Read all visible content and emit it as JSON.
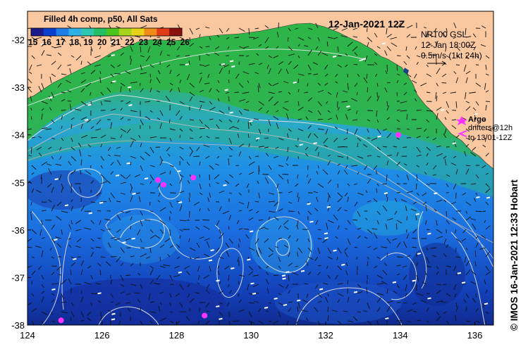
{
  "map": {
    "title": "Filled 4h comp, p50, All Sats",
    "date_title": "12-Jan-2021 12Z",
    "colorbar_ticks": [
      "15",
      "16",
      "17",
      "18",
      "19",
      "20",
      "21",
      "22",
      "23",
      "24",
      "25",
      "26"
    ],
    "colorbar_colors": [
      "#1a1a8a",
      "#0b3fd0",
      "#1f7fe8",
      "#2fb0e6",
      "#2cc9b0",
      "#22c063",
      "#4bc41e",
      "#a6d41a",
      "#e8d219",
      "#f08a18",
      "#e03a16",
      "#8a1010"
    ],
    "source_label_1": "NRT00 GSL",
    "source_label_2": "12-Jan 18:00Z",
    "source_label_3": "0.5m/s (1kt 24h)",
    "argo_label": "Argo",
    "drifters_label_1": "drifters@12h",
    "drifters_label_2": "to 13/01-12Z",
    "credit": "© IMOS 16-Jan-2021 12:33 Hobart",
    "x_ticks": [
      "124",
      "126",
      "128",
      "130",
      "132",
      "134",
      "136"
    ],
    "y_ticks": [
      "-32",
      "-33",
      "-34",
      "-35",
      "-36",
      "-37",
      "-38"
    ],
    "x_range": [
      124,
      136.5
    ],
    "y_range": [
      -38,
      -31.4
    ],
    "land_color": "#f9c8a0",
    "argo_floats": [
      {
        "lon": 124.9,
        "lat": -37.9
      },
      {
        "lon": 127.5,
        "lat": -34.95
      },
      {
        "lon": 127.65,
        "lat": -35.05
      },
      {
        "lon": 128.45,
        "lat": -34.9
      },
      {
        "lon": 128.75,
        "lat": -37.8
      },
      {
        "lon": 133.95,
        "lat": -34.0
      }
    ]
  }
}
